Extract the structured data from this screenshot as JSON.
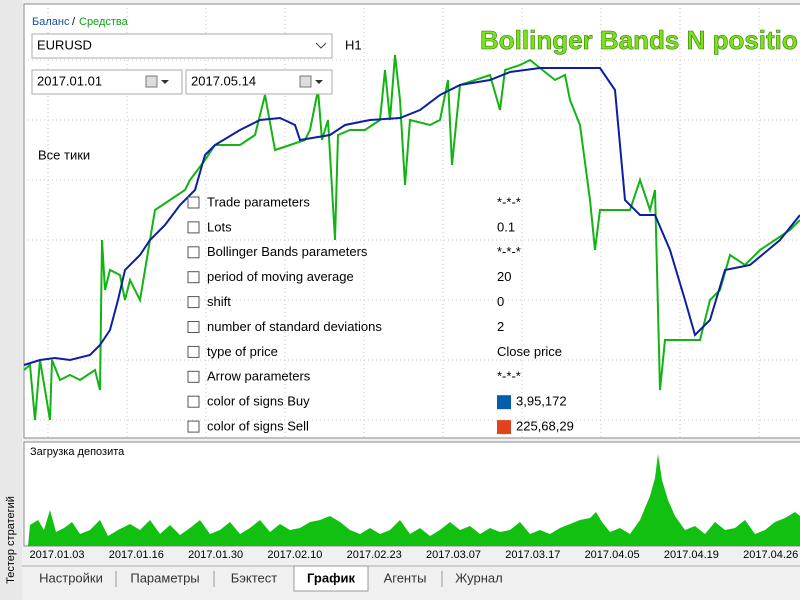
{
  "top_label": {
    "balance": "Баланс",
    "separator": "/",
    "equity": "Средства"
  },
  "symbol": "EURUSD",
  "period": "H1",
  "date_from": "2017.01.01",
  "date_to": "2017.05.14",
  "model": "Все тики",
  "title": "Bollinger Bands N positio",
  "parameters": [
    {
      "name": "Trade parameters",
      "value": "*-*-*"
    },
    {
      "name": "Lots",
      "value": "0.1"
    },
    {
      "name": "Bollinger Bands parameters",
      "value": "*-*-*"
    },
    {
      "name": "period of moving average",
      "value": "20"
    },
    {
      "name": "shift",
      "value": "0"
    },
    {
      "name": "number of standard deviations",
      "value": "2"
    },
    {
      "name": "type of price",
      "value": "Close price"
    },
    {
      "name": "Arrow parameters",
      "value": "*-*-*"
    },
    {
      "name": "color of signs Buy",
      "value": "3,95,172",
      "swatch": "#035fac"
    },
    {
      "name": "color of signs Sell",
      "value": "225,68,29",
      "swatch": "#e1441d"
    }
  ],
  "deposit_load_label": "Загрузка депозита",
  "date_labels": [
    "2017.01.03",
    "2017.01.16",
    "2017.01.30",
    "2017.02.10",
    "2017.02.23",
    "2017.03.07",
    "2017.03.17",
    "2017.04.05",
    "2017.04.19",
    "2017.04.26"
  ],
  "side_label": "Тестер стратегий",
  "tabs": [
    "Настройки",
    "Параметры",
    "Бэктест",
    "График",
    "Агенты",
    "Журнал"
  ],
  "active_tab": 3
}
